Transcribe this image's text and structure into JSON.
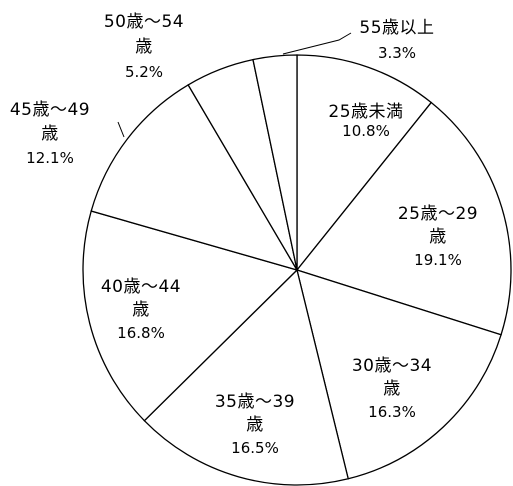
{
  "chart_data": {
    "type": "pie",
    "start_angle": "12 o'clock",
    "direction": "clockwise",
    "slice_fill": "#ffffff",
    "slice_stroke": "#000000",
    "slices": [
      {
        "label_lines": [
          "25歳未満"
        ],
        "percent_label": "10.8%",
        "value": 10.8
      },
      {
        "label_lines": [
          "25歳～29",
          "歳"
        ],
        "percent_label": "19.1%",
        "value": 19.1
      },
      {
        "label_lines": [
          "30歳～34",
          "歳"
        ],
        "percent_label": "16.3%",
        "value": 16.3
      },
      {
        "label_lines": [
          "35歳～39",
          "歳"
        ],
        "percent_label": "16.5%",
        "value": 16.5
      },
      {
        "label_lines": [
          "40歳～44",
          "歳"
        ],
        "percent_label": "16.8%",
        "value": 16.8
      },
      {
        "label_lines": [
          "45歳～49",
          "歳"
        ],
        "percent_label": "12.1%",
        "value": 12.1
      },
      {
        "label_lines": [
          "50歳～54",
          "歳"
        ],
        "percent_label": "5.2%",
        "value": 5.2
      },
      {
        "label_lines": [
          "55歳以上"
        ],
        "percent_label": "3.3%",
        "value": 3.3
      }
    ]
  }
}
